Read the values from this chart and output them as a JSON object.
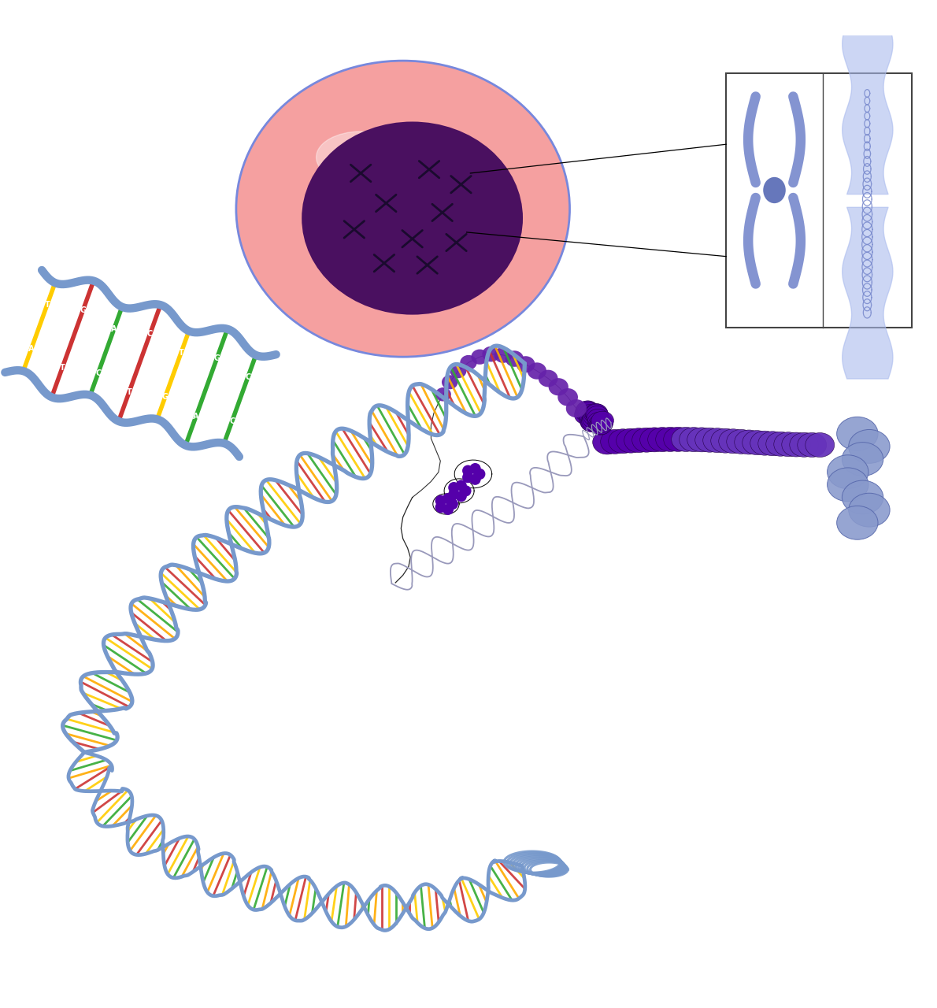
{
  "bg_color": "#ffffff",
  "cell_color_outer": "#f5a0a0",
  "cell_color_inner": "#4a1060",
  "cell_edge_color": "#7788dd",
  "chrom_box_color": "#7788cc",
  "helix_color": "#7799cc",
  "base_colors": [
    "#cc3333",
    "#ffcc00",
    "#33aa33",
    "#ffaa00"
  ],
  "nucleosome_color": "#5500aa",
  "solenoid_color": "#6633bb",
  "thread_color": "#111111",
  "label_pairs": [
    [
      "A",
      "T"
    ],
    [
      "T",
      "G"
    ],
    [
      "C",
      "A"
    ],
    [
      "T",
      "C"
    ],
    [
      "G",
      "T"
    ],
    [
      "A",
      "G"
    ],
    [
      "C",
      "C"
    ]
  ],
  "label_colors": [
    "#ffcc00",
    "#cc3333",
    "#33aa33",
    "#cc3333",
    "#ffcc00",
    "#33aa33",
    "#33aa33"
  ]
}
